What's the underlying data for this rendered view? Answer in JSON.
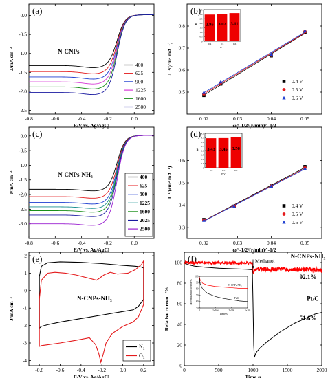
{
  "chart_data": [
    {
      "id": "a",
      "type": "line",
      "panel_label": "(a)",
      "annotation": "N-CNPs",
      "xlabel": "E/V vs. Ag/AgCl",
      "ylabel": "J/mA cm⁻²",
      "xlim": [
        -0.8,
        0.15
      ],
      "ylim": [
        -2.6,
        0.3
      ],
      "xticks": [
        -0.8,
        -0.6,
        -0.4,
        -0.2,
        0.0
      ],
      "xtick_labels": [
        "-0.8",
        "-0.6",
        "-0.4",
        "-0.2",
        "0.0"
      ],
      "yticks": [
        -2.5,
        -2.0,
        -1.5,
        -1.0,
        -0.5,
        0.0
      ],
      "ytick_labels": [
        "-2.5",
        "-2.0",
        "-1.5",
        "-1.0",
        "-0.5",
        "0.0"
      ],
      "legend_position": "right",
      "series": [
        {
          "name": "400",
          "color": "#000000",
          "plateau": -1.32,
          "x_half": -0.13
        },
        {
          "name": "625",
          "color": "#e41a1c",
          "plateau": -1.48,
          "x_half": -0.13
        },
        {
          "name": "900",
          "color": "#1f3fd0",
          "plateau": -1.62,
          "x_half": -0.13
        },
        {
          "name": "1225",
          "color": "#d63ad6",
          "plateau": -1.75,
          "x_half": -0.13
        },
        {
          "name": "1600",
          "color": "#1a8f1a",
          "plateau": -1.88,
          "x_half": -0.13
        },
        {
          "name": "2500",
          "color": "#1a1aa0",
          "plateau": -2.03,
          "x_half": -0.13
        }
      ]
    },
    {
      "id": "b",
      "type": "scatter",
      "panel_label": "(b)",
      "xlabel": "ω^-1/2/(r/min)^-1/2",
      "ylabel": "J⁻¹/(cm² mA⁻¹)",
      "xlim": [
        0.015,
        0.055
      ],
      "ylim": [
        0.4,
        0.9
      ],
      "xticks": [
        0.02,
        0.03,
        0.04,
        0.05
      ],
      "xtick_labels": [
        "0.02",
        "0.03",
        "0.04",
        "0.05"
      ],
      "yticks": [
        0.5,
        0.6,
        0.7,
        0.8
      ],
      "ytick_labels": [
        "0.5",
        "0.6",
        "0.7",
        "0.8"
      ],
      "legend_position": "lower-right",
      "series": [
        {
          "name": "0.4 V",
          "color": "#000000",
          "marker": "square",
          "x": [
            0.02,
            0.025,
            0.04,
            0.05
          ],
          "y": [
            0.485,
            0.537,
            0.665,
            0.772
          ]
        },
        {
          "name": "0.5 V",
          "color": "#e41a1c",
          "marker": "circle",
          "x": [
            0.02,
            0.025,
            0.04,
            0.05
          ],
          "y": [
            0.492,
            0.542,
            0.668,
            0.775
          ]
        },
        {
          "name": "0.6 V",
          "color": "#1f3fd0",
          "marker": "triangle",
          "x": [
            0.02,
            0.025,
            0.04,
            0.05
          ],
          "y": [
            0.498,
            0.546,
            0.672,
            0.778
          ]
        }
      ],
      "inset": {
        "type": "bar",
        "ylabel": "n",
        "xlabel": "E/V",
        "categories": [
          "0.4",
          "0.5",
          "0.6"
        ],
        "values": [
          2.95,
          3.02,
          3.11
        ],
        "value_labels": [
          "2.95",
          "3.02",
          "3.11"
        ],
        "ylim": [
          0,
          3.5
        ],
        "yticks": [
          0,
          0.5,
          1.0,
          1.5,
          2.0,
          2.5,
          3.0,
          3.5
        ],
        "ytick_labels": [
          "0",
          "0.5",
          "1.0",
          "1.5",
          "2.0",
          "2.5",
          "3.0",
          "3.5"
        ],
        "color": "#ee0000"
      }
    },
    {
      "id": "c",
      "type": "line",
      "panel_label": "(c)",
      "annotation": "N-CNPs-NH₃",
      "xlabel": "E/V vs. Ag/AgCl",
      "ylabel": "J/mA cm⁻²",
      "xlim": [
        -0.8,
        0.15
      ],
      "ylim": [
        -3.5,
        0.3
      ],
      "xticks": [
        -0.8,
        -0.6,
        -0.4,
        -0.2,
        0.0
      ],
      "xtick_labels": [
        "-0.8",
        "-0.6",
        "-0.4",
        "-0.2",
        "0.0"
      ],
      "yticks": [
        -3.0,
        -2.5,
        -2.0,
        -1.5,
        -1.0,
        -0.5,
        0.0
      ],
      "ytick_labels": [
        "-3.0",
        "-2.5",
        "-2.0",
        "-1.5",
        "-1.0",
        "-0.5",
        "0.0"
      ],
      "legend_position": "right",
      "series": [
        {
          "name": "400",
          "color": "#000000",
          "plateau": -1.82,
          "x_half": -0.13
        },
        {
          "name": "625",
          "color": "#e41a1c",
          "plateau": -2.07,
          "x_half": -0.13
        },
        {
          "name": "900",
          "color": "#1f3fd0",
          "plateau": -2.27,
          "x_half": -0.13
        },
        {
          "name": "1225",
          "color": "#1a8f8f",
          "plateau": -2.42,
          "x_half": -0.13
        },
        {
          "name": "1600",
          "color": "#1a8f1a",
          "plateau": -2.55,
          "x_half": -0.13
        },
        {
          "name": "2025",
          "color": "#1a1aa0",
          "plateau": -2.7,
          "x_half": -0.13
        },
        {
          "name": "2500",
          "color": "#9a1fd0",
          "plateau": -3.0,
          "x_half": -0.13
        }
      ]
    },
    {
      "id": "d",
      "type": "scatter",
      "panel_label": "(d)",
      "xlabel": "ω^-1/2/(r/min)^-1/2",
      "ylabel": "J⁻¹/(cm² mA⁻¹)",
      "xlim": [
        0.015,
        0.055
      ],
      "ylim": [
        0.25,
        0.75
      ],
      "xticks": [
        0.02,
        0.03,
        0.04,
        0.05
      ],
      "xtick_labels": [
        "0.02",
        "0.03",
        "0.04",
        "0.05"
      ],
      "yticks": [
        0.3,
        0.4,
        0.5,
        0.6
      ],
      "ytick_labels": [
        "0.3",
        "0.4",
        "0.5",
        "0.6"
      ],
      "legend_position": "lower-right",
      "series": [
        {
          "name": "0.4 V",
          "color": "#000000",
          "marker": "square",
          "x": [
            0.02,
            0.029,
            0.04,
            0.05
          ],
          "y": [
            0.335,
            0.395,
            0.486,
            0.573
          ]
        },
        {
          "name": "0.5 V",
          "color": "#e41a1c",
          "marker": "circle",
          "x": [
            0.02,
            0.029,
            0.04,
            0.05
          ],
          "y": [
            0.333,
            0.394,
            0.485,
            0.567
          ]
        },
        {
          "name": "0.6 V",
          "color": "#1f3fd0",
          "marker": "triangle",
          "x": [
            0.02,
            0.029,
            0.04,
            0.05
          ],
          "y": [
            0.331,
            0.393,
            0.484,
            0.564
          ]
        }
      ],
      "inset": {
        "type": "bar",
        "ylabel": "n",
        "xlabel": "E/V",
        "categories": [
          "0.4",
          "0.5",
          "0.6"
        ],
        "values": [
          3.43,
          3.45,
          3.56
        ],
        "value_labels": [
          "3.43",
          "3.45",
          "3.56"
        ],
        "ylim": [
          0,
          4.0
        ],
        "yticks": [
          0,
          0.5,
          1.0,
          1.5,
          2.0,
          2.5,
          3.0,
          3.5,
          4.0
        ],
        "ytick_labels": [
          "0",
          "0.5",
          "1.0",
          "1.5",
          "2.0",
          "2.5",
          "3.0",
          "3.5",
          "4.0"
        ],
        "color": "#ee0000"
      }
    },
    {
      "id": "e",
      "type": "line",
      "panel_label": "(e)",
      "annotation": "N-CNPs-NH₃",
      "xlabel": "E/V vs. Ag/AgCl",
      "ylabel": "J/mA cm⁻²",
      "xlim": [
        -0.9,
        0.3
      ],
      "ylim": [
        -4.3,
        2.2
      ],
      "xticks": [
        -0.8,
        -0.6,
        -0.4,
        -0.2,
        0.0,
        0.2
      ],
      "xtick_labels": [
        "-0.8",
        "-0.6",
        "-0.4",
        "-0.2",
        "0.0",
        "0.2"
      ],
      "yticks": [
        -4,
        -3,
        -2,
        -1,
        0,
        1,
        2
      ],
      "ytick_labels": [
        "-4",
        "-3",
        "-2",
        "-1",
        "0",
        "1",
        "2"
      ],
      "legend_position": "lower-right",
      "series": [
        {
          "name": "N₂",
          "color": "#000000",
          "x": [
            -0.8,
            -0.78,
            -0.72,
            -0.6,
            -0.4,
            -0.2,
            0.0,
            0.1,
            0.15,
            0.2,
            0.2,
            0.18,
            0.12,
            0.0,
            -0.2,
            -0.4,
            -0.6,
            -0.72,
            -0.78,
            -0.8,
            -0.8
          ],
          "y": [
            -2.15,
            -2.05,
            -1.95,
            -1.8,
            -1.6,
            -1.4,
            -1.2,
            -1.1,
            -0.9,
            -0.5,
            1.3,
            1.35,
            1.4,
            1.45,
            1.55,
            1.62,
            1.65,
            1.6,
            1.4,
            0.8,
            -2.15
          ]
        },
        {
          "name": "O₂",
          "color": "#e41a1c",
          "x": [
            -0.8,
            -0.78,
            -0.72,
            -0.6,
            -0.45,
            -0.32,
            -0.26,
            -0.23,
            -0.21,
            -0.19,
            -0.16,
            -0.1,
            0.0,
            0.1,
            0.15,
            0.2,
            0.2,
            0.18,
            0.12,
            0.05,
            -0.05,
            -0.12,
            -0.18,
            -0.25,
            -0.35,
            -0.45,
            -0.55,
            -0.65,
            -0.72,
            -0.78,
            -0.8,
            -0.8
          ],
          "y": [
            -3.2,
            -3.15,
            -3.1,
            -3.0,
            -2.85,
            -2.7,
            -3.1,
            -3.6,
            -4.1,
            -3.7,
            -3.0,
            -2.45,
            -2.05,
            -1.8,
            -1.5,
            -0.8,
            1.7,
            1.5,
            1.2,
            1.0,
            0.95,
            1.05,
            0.9,
            0.6,
            0.75,
            0.9,
            1.0,
            1.05,
            1.0,
            0.6,
            -0.5,
            -3.2
          ]
        }
      ]
    },
    {
      "id": "f",
      "type": "line",
      "panel_label": "(f)",
      "xlabel": "Time /s",
      "ylabel": "Relative current /%",
      "xlim": [
        0,
        2000
      ],
      "ylim": [
        0,
        110
      ],
      "xticks": [
        0,
        500,
        1000,
        1500,
        2000
      ],
      "xtick_labels": [
        "0",
        "500",
        "1000",
        "1500",
        "2000"
      ],
      "yticks": [
        0,
        20,
        40,
        60,
        80,
        100
      ],
      "ytick_labels": [
        "0",
        "20",
        "40",
        "60",
        "80",
        "100"
      ],
      "annotations": [
        {
          "text": "Methanol",
          "x": 1000,
          "y": 100
        },
        {
          "text": "N-CNPs-NH₃",
          "x": 1800,
          "y": 104
        },
        {
          "text": "92.1%",
          "x": 1800,
          "y": 84
        },
        {
          "text": "Pt/C",
          "x": 1870,
          "y": 63
        },
        {
          "text": "51.6%",
          "x": 1800,
          "y": 44
        }
      ],
      "series": [
        {
          "name": "N-CNPs-NH₃",
          "color": "#ff0000",
          "noisy": true,
          "x": [
            0,
            100,
            300,
            500,
            700,
            900,
            990,
            1000,
            1010,
            1050,
            1100,
            1300,
            1500,
            1700,
            1900,
            2000
          ],
          "y": [
            100,
            100,
            99.5,
            99.5,
            99.6,
            99.5,
            99.3,
            90,
            92,
            93,
            93.5,
            93.5,
            93.3,
            93.2,
            93.0,
            92.1
          ]
        },
        {
          "name": "Pt/C",
          "color": "#000000",
          "x": [
            0,
            50,
            150,
            300,
            500,
            700,
            900,
            990,
            1000,
            1010,
            1020,
            1040,
            1060,
            1100,
            1200,
            1300,
            1400,
            1500,
            1600,
            1700,
            1800,
            1900,
            2000
          ],
          "y": [
            100,
            98,
            96.5,
            95.5,
            94.5,
            94,
            93.5,
            93,
            60,
            20,
            8,
            12,
            14,
            17,
            23,
            28,
            33,
            37,
            41,
            44,
            47,
            50,
            51.6
          ]
        }
      ],
      "inset": {
        "type": "line",
        "xlabel": "Time/s",
        "ylabel": "Normalized current/%",
        "xlim": [
          0,
          30000
        ],
        "ylim": [
          50,
          100
        ],
        "xticks": [
          0,
          10000,
          20000,
          30000
        ],
        "xtick_labels": [
          "0",
          "1x10⁴",
          "2x10⁴",
          "3x10⁴"
        ],
        "yticks": [
          50,
          60,
          70,
          80,
          90,
          100
        ],
        "ytick_labels": [
          "50",
          "60",
          "70",
          "80",
          "90",
          "100"
        ],
        "series": [
          {
            "name": "N-CNPs-NH₃",
            "color": "#ff0000",
            "x": [
              0,
              500,
              2000,
              5000,
              10000,
              15000,
              20000,
              25000,
              30000
            ],
            "y": [
              99,
              94,
              89,
              86,
              84,
              83,
              82,
              81,
              81
            ]
          },
          {
            "name": "Pt/C",
            "color": "#000000",
            "x": [
              0,
              500,
              2000,
              5000,
              10000,
              15000,
              20000,
              25000,
              30000
            ],
            "y": [
              98,
              88,
              80,
              73,
              68,
              65,
              63,
              61,
              60
            ]
          }
        ]
      }
    }
  ]
}
